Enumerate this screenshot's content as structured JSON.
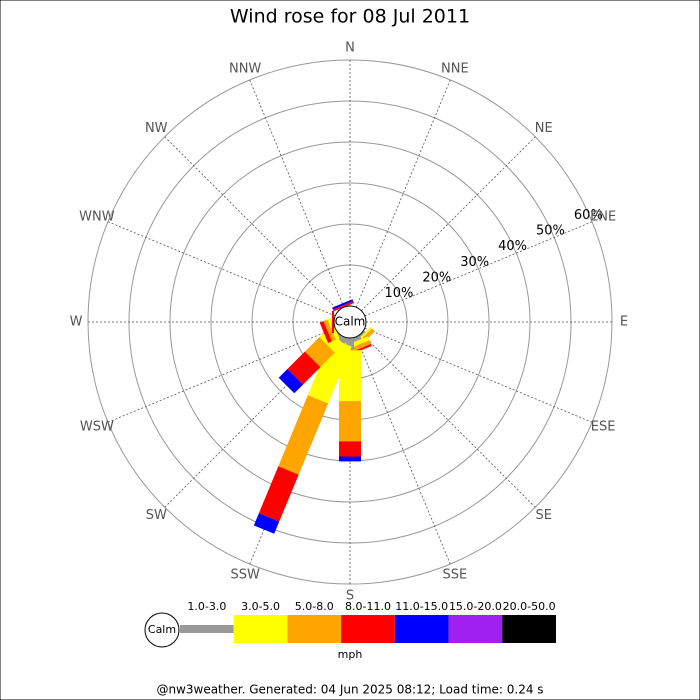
{
  "chart_data": {
    "type": "windrose",
    "title": "Wind rose for 08 Jul 2011",
    "categories": [
      "N",
      "NNE",
      "NE",
      "ENE",
      "E",
      "ESE",
      "SE",
      "SSE",
      "S",
      "SSW",
      "SW",
      "WSW",
      "W",
      "WNW",
      "NW",
      "NNW"
    ],
    "calm_label": "Calm",
    "ylim": [
      0,
      60
    ],
    "yticks": [
      {
        "value": 10,
        "label": "10%"
      },
      {
        "value": 20,
        "label": "20%"
      },
      {
        "value": 30,
        "label": "30%"
      },
      {
        "value": 40,
        "label": "40%"
      },
      {
        "value": 50,
        "label": "50%"
      },
      {
        "value": 60,
        "label": "60%"
      }
    ],
    "series": [
      {
        "name": "1.0-3.0",
        "color": "#999999",
        "values": [
          0,
          0,
          0,
          0,
          0,
          0,
          0.5,
          1,
          3,
          1.5,
          1,
          0,
          0,
          0,
          0,
          0
        ]
      },
      {
        "name": "3.0-5.0",
        "color": "#ffff00",
        "values": [
          0,
          0,
          0,
          0,
          0,
          0,
          0.5,
          1,
          12.4,
          15,
          3,
          1,
          0,
          0,
          0,
          0
        ]
      },
      {
        "name": "5.0-8.0",
        "color": "#ffa500",
        "values": [
          0,
          0,
          0,
          0,
          0,
          0,
          1,
          1,
          9.8,
          18.8,
          5,
          1,
          0,
          0,
          0,
          0
        ]
      },
      {
        "name": "8.0-11.0",
        "color": "#ff0000",
        "values": [
          0,
          0,
          0,
          0,
          0,
          0,
          0,
          0.5,
          3.7,
          12.4,
          6,
          1,
          0.5,
          0,
          0,
          0.5
        ]
      },
      {
        "name": "11.0-15.0",
        "color": "#0000ff",
        "values": [
          0,
          0,
          0,
          0,
          0,
          0,
          0,
          0,
          1.2,
          3.2,
          3,
          0,
          0,
          0,
          0,
          0.5
        ]
      },
      {
        "name": "15.0-20.0",
        "color": "#a020f0",
        "values": [
          0,
          0,
          0,
          0,
          0,
          0,
          0,
          0,
          0,
          0,
          0,
          0,
          0,
          0,
          0,
          0
        ]
      },
      {
        "name": "20.0-50.0",
        "color": "#000000",
        "values": [
          0,
          0,
          0,
          0,
          0,
          0,
          0,
          0,
          0,
          0,
          0,
          0,
          0,
          0,
          0,
          0
        ]
      }
    ],
    "legend_unit": "mph",
    "footer": "@nw3weather. Generated: 04 Jun 2025 08:12; Load time: 0.24 s"
  }
}
